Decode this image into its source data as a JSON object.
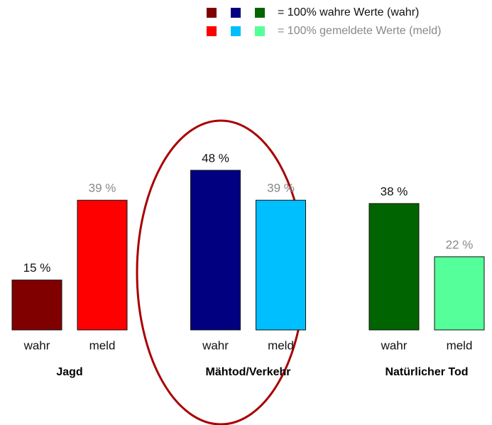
{
  "chart_data": {
    "type": "bar",
    "categories": [
      "Jagd",
      "Mähtod/Verkehr",
      "Natürlicher Tod"
    ],
    "series": [
      {
        "name": "= 100% wahre Werte (wahr)",
        "short_name": "wahr",
        "colors": [
          "#800000",
          "#000080",
          "#006400"
        ],
        "label_color": "#111111",
        "values": [
          15,
          48,
          38
        ],
        "value_labels": [
          "15 %",
          "48 %",
          "38 %"
        ]
      },
      {
        "name": "= 100% gemeldete Werte (meld)",
        "short_name": "meld",
        "colors": [
          "#ff0000",
          "#00bfff",
          "#55ff99"
        ],
        "label_color": "#888888",
        "values": [
          39,
          39,
          22
        ],
        "value_labels": [
          "39 %",
          "39 %",
          "22 %"
        ]
      }
    ],
    "ylim": [
      0,
      48
    ]
  }
}
